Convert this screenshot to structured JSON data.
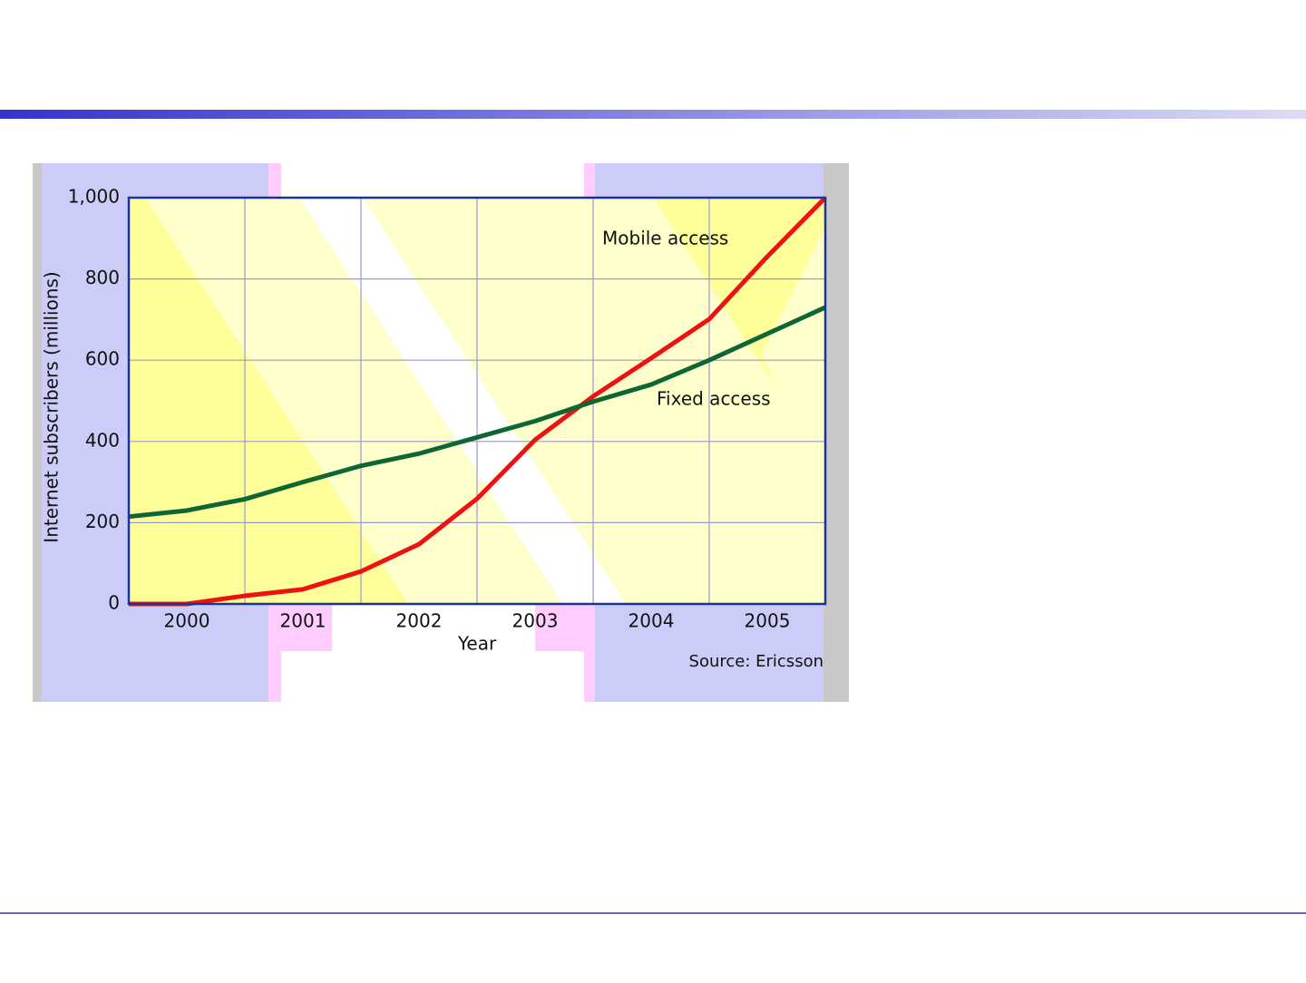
{
  "chart_data": {
    "type": "line",
    "xlabel": "Year",
    "ylabel": "Internet subscribers (millions)",
    "annotations": [
      "Mobile access",
      "Fixed access",
      "Source: Ericsson"
    ],
    "x": [
      2000,
      2000.5,
      2001,
      2001.5,
      2002,
      2002.5,
      2003,
      2003.5,
      2004,
      2004.5,
      2005,
      2005.5,
      2006
    ],
    "series": [
      {
        "name": "Mobile access",
        "color": "#ee1111",
        "values": [
          0,
          0,
          20,
          36,
          80,
          147,
          259,
          404,
          511,
          605,
          701,
          855,
          1000
        ]
      },
      {
        "name": "Fixed access",
        "color": "#0d6633",
        "values": [
          215,
          230,
          258,
          300,
          340,
          370,
          410,
          450,
          498,
          540,
          600,
          665,
          730
        ]
      }
    ],
    "xlim": [
      2000,
      2006
    ],
    "ylim": [
      0,
      1000
    ],
    "xticks": [
      {
        "value": 2000.5,
        "label": "2000"
      },
      {
        "value": 2001.5,
        "label": "2001"
      },
      {
        "value": 2002.5,
        "label": "2002"
      },
      {
        "value": 2003.5,
        "label": "2003"
      },
      {
        "value": 2004.5,
        "label": "2004"
      },
      {
        "value": 2005.5,
        "label": "2005"
      }
    ],
    "yticks": [
      0,
      200,
      400,
      600,
      800,
      {
        "value": 1000,
        "label": "1,000"
      }
    ],
    "grid": true
  }
}
